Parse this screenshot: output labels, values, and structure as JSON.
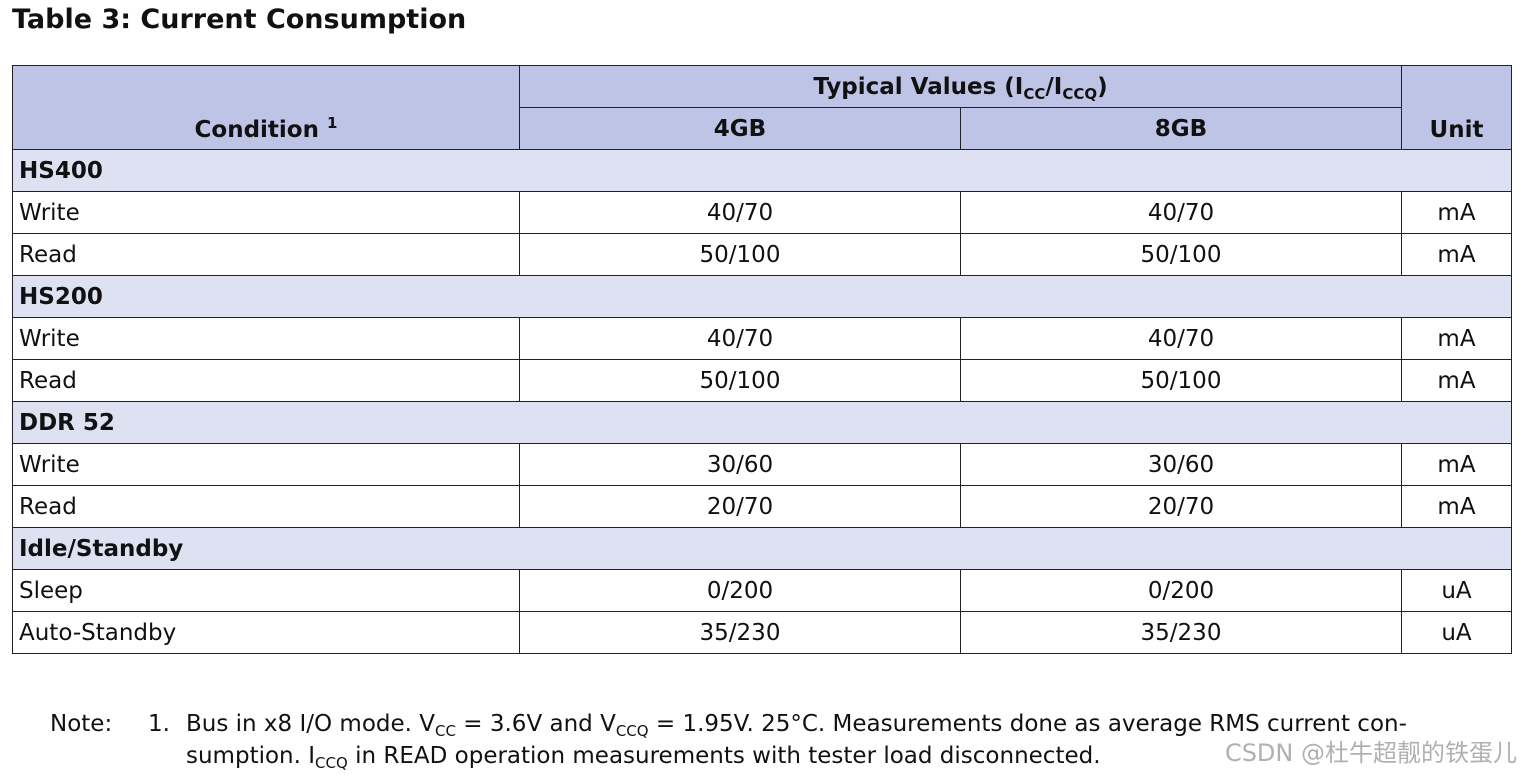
{
  "title": "Table 3: Current Consumption",
  "table": {
    "header": {
      "condition": "Condition",
      "condition_note": "1",
      "typical": [
        "Typical Values (I",
        "CC",
        "/I",
        "CCQ",
        ")"
      ],
      "columns": [
        "4GB",
        "8GB"
      ],
      "unit": "Unit"
    },
    "sections": [
      {
        "name": "HS400",
        "rows": [
          [
            "Write",
            "40/70",
            "40/70",
            "mA"
          ],
          [
            "Read",
            "50/100",
            "50/100",
            "mA"
          ]
        ]
      },
      {
        "name": "HS200",
        "rows": [
          [
            "Write",
            "40/70",
            "40/70",
            "mA"
          ],
          [
            "Read",
            "50/100",
            "50/100",
            "mA"
          ]
        ]
      },
      {
        "name": "DDR 52",
        "rows": [
          [
            "Write",
            "30/60",
            "30/60",
            "mA"
          ],
          [
            "Read",
            "20/70",
            "20/70",
            "mA"
          ]
        ]
      },
      {
        "name": "Idle/Standby",
        "rows": [
          [
            "Sleep",
            "0/200",
            "0/200",
            "uA"
          ],
          [
            "Auto-Standby",
            "35/230",
            "35/230",
            "uA"
          ]
        ]
      }
    ]
  },
  "note": {
    "label": "Note:",
    "number": "1.",
    "lines": [
      [
        "Bus in x8 I/O mode. V",
        "CC",
        " = 3.6V and V",
        "CCQ",
        " = 1.95V. 25°C. Measurements done as average RMS current con-"
      ],
      [
        "sumption. I",
        "CCQ",
        " in READ operation measurements with tester load disconnected."
      ]
    ]
  },
  "watermark": "CSDN @杜牛超靓的铁蛋儿"
}
